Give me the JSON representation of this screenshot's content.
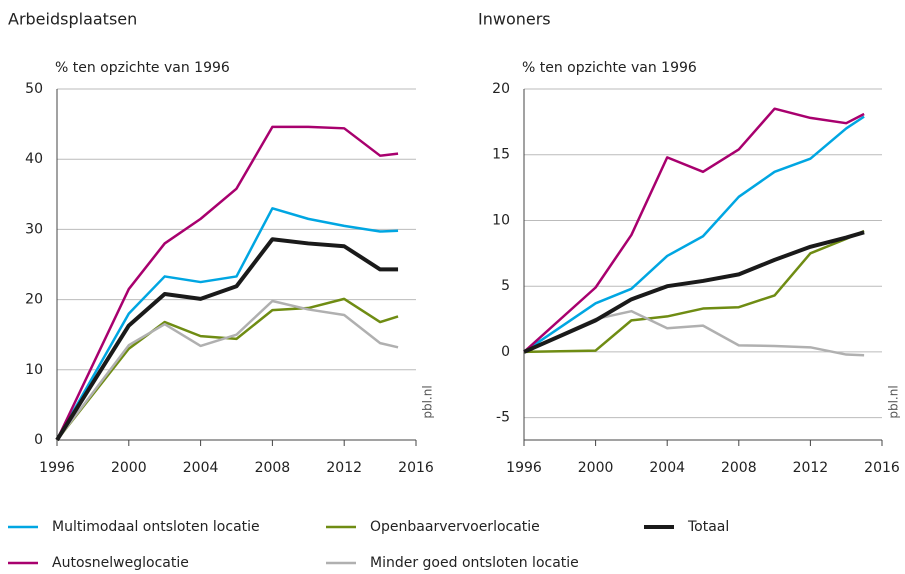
{
  "chart_data": [
    {
      "type": "line",
      "title": "Arbeidsplaatsen",
      "y_label": "% ten opzichte van 1996",
      "source": "pbl.nl",
      "x": [
        1996,
        2000,
        2002,
        2004,
        2006,
        2008,
        2010,
        2012,
        2014,
        2015
      ],
      "xlim": [
        1996,
        2016
      ],
      "xticks": [
        1996,
        2000,
        2004,
        2008,
        2012,
        2016
      ],
      "ylim": [
        0,
        50
      ],
      "yticks": [
        0,
        10,
        20,
        30,
        40,
        50
      ],
      "grid": true,
      "series": [
        {
          "name": "Multimodaal ontsloten locatie",
          "color": "#00a6e2",
          "values": [
            0,
            18,
            23.3,
            22.5,
            23.3,
            33,
            31.5,
            30.5,
            29.7,
            29.8
          ]
        },
        {
          "name": "Autosnelweglocatie",
          "color": "#a8006e",
          "values": [
            0,
            21.5,
            28,
            31.5,
            35.8,
            44.6,
            44.6,
            44.4,
            40.5,
            40.8
          ]
        },
        {
          "name": "Openbaarvervoerlocatie",
          "color": "#6f8c13",
          "values": [
            0,
            13,
            16.8,
            14.8,
            14.4,
            18.5,
            18.8,
            20.1,
            16.8,
            17.6
          ]
        },
        {
          "name": "Minder goed ontsloten locatie",
          "color": "#b0b0b0",
          "values": [
            0,
            13.5,
            16.5,
            13.4,
            15,
            19.8,
            18.6,
            17.8,
            13.8,
            13.2
          ]
        },
        {
          "name": "Totaal",
          "color": "#1a1a1a",
          "values": [
            0,
            16.3,
            20.8,
            20.1,
            21.9,
            28.6,
            28,
            27.6,
            24.3,
            24.3
          ]
        }
      ]
    },
    {
      "type": "line",
      "title": "Inwoners",
      "y_label": "% ten opzichte van 1996",
      "source": "pbl.nl",
      "x": [
        1996,
        2000,
        2002,
        2004,
        2006,
        2008,
        2010,
        2012,
        2014,
        2015
      ],
      "xlim": [
        1996,
        2016
      ],
      "xticks": [
        1996,
        2000,
        2004,
        2008,
        2012,
        2016
      ],
      "ylim": [
        -6.7,
        20
      ],
      "yticks": [
        -5,
        0,
        5,
        10,
        15,
        20
      ],
      "grid": true,
      "series": [
        {
          "color": "#00a6e2",
          "values": [
            0,
            3.7,
            4.8,
            7.3,
            8.8,
            11.8,
            13.7,
            14.7,
            17,
            17.9
          ]
        },
        {
          "color": "#a8006e",
          "values": [
            0,
            4.9,
            8.9,
            14.8,
            13.7,
            15.4,
            18.5,
            17.8,
            17.4,
            18.1
          ]
        },
        {
          "color": "#6f8c13",
          "values": [
            0,
            0.1,
            2.4,
            2.7,
            3.3,
            3.4,
            4.3,
            7.5,
            8.6,
            9.2
          ]
        },
        {
          "color": "#b0b0b0",
          "values": [
            0,
            2.5,
            3.1,
            1.8,
            2,
            0.5,
            0.45,
            0.35,
            -0.2,
            -0.25
          ]
        },
        {
          "color": "#1a1a1a",
          "values": [
            0,
            2.4,
            4,
            5,
            5.4,
            5.9,
            7,
            8,
            8.7,
            9.1
          ]
        }
      ]
    }
  ]
}
